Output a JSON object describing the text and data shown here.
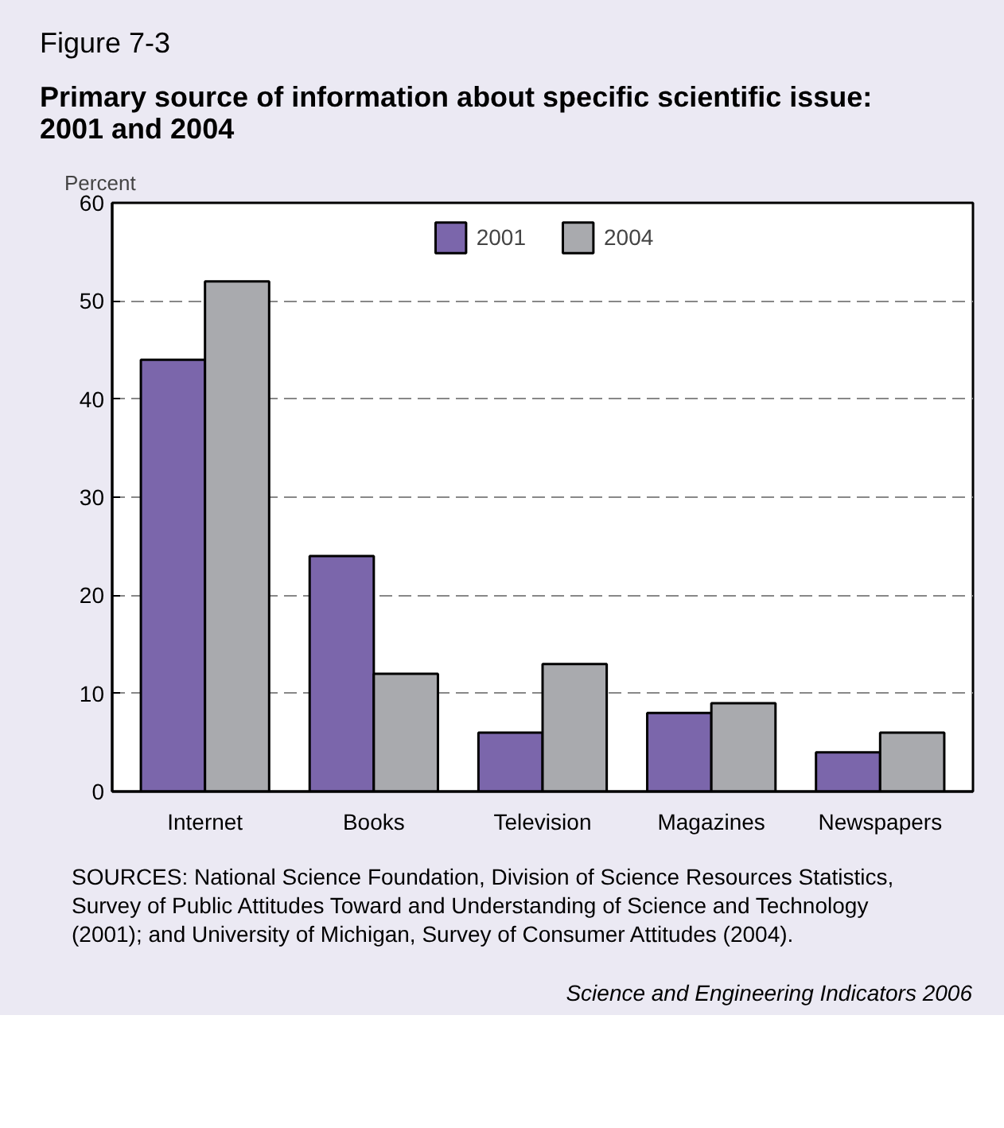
{
  "chart_data": {
    "type": "bar",
    "title": "Figure 7-3",
    "subtitle": "Primary source of information about specific scientific issue: 2001 and 2004",
    "ylabel": "Percent",
    "categories": [
      "Internet",
      "Books",
      "Television",
      "Magazines",
      "Newspapers"
    ],
    "series": [
      {
        "name": "2001",
        "color": "#7b66ab",
        "values": [
          44,
          24,
          6,
          8,
          4
        ]
      },
      {
        "name": "2004",
        "color": "#a9aaae",
        "values": [
          52,
          12,
          13,
          9,
          6
        ]
      }
    ],
    "ylim": [
      0,
      60
    ],
    "yticks": [
      0,
      10,
      20,
      30,
      40,
      50,
      60
    ],
    "grid": "y",
    "legend": "top",
    "annotations": [
      "SOURCES: National Science Foundation, Division of Science Resources Statistics, Survey of Public Attitudes Toward and Understanding of Science and Technology (2001); and University of Michigan, Survey of Consumer Attitudes (2004).",
      "Science and Engineering Indicators 2006"
    ]
  }
}
